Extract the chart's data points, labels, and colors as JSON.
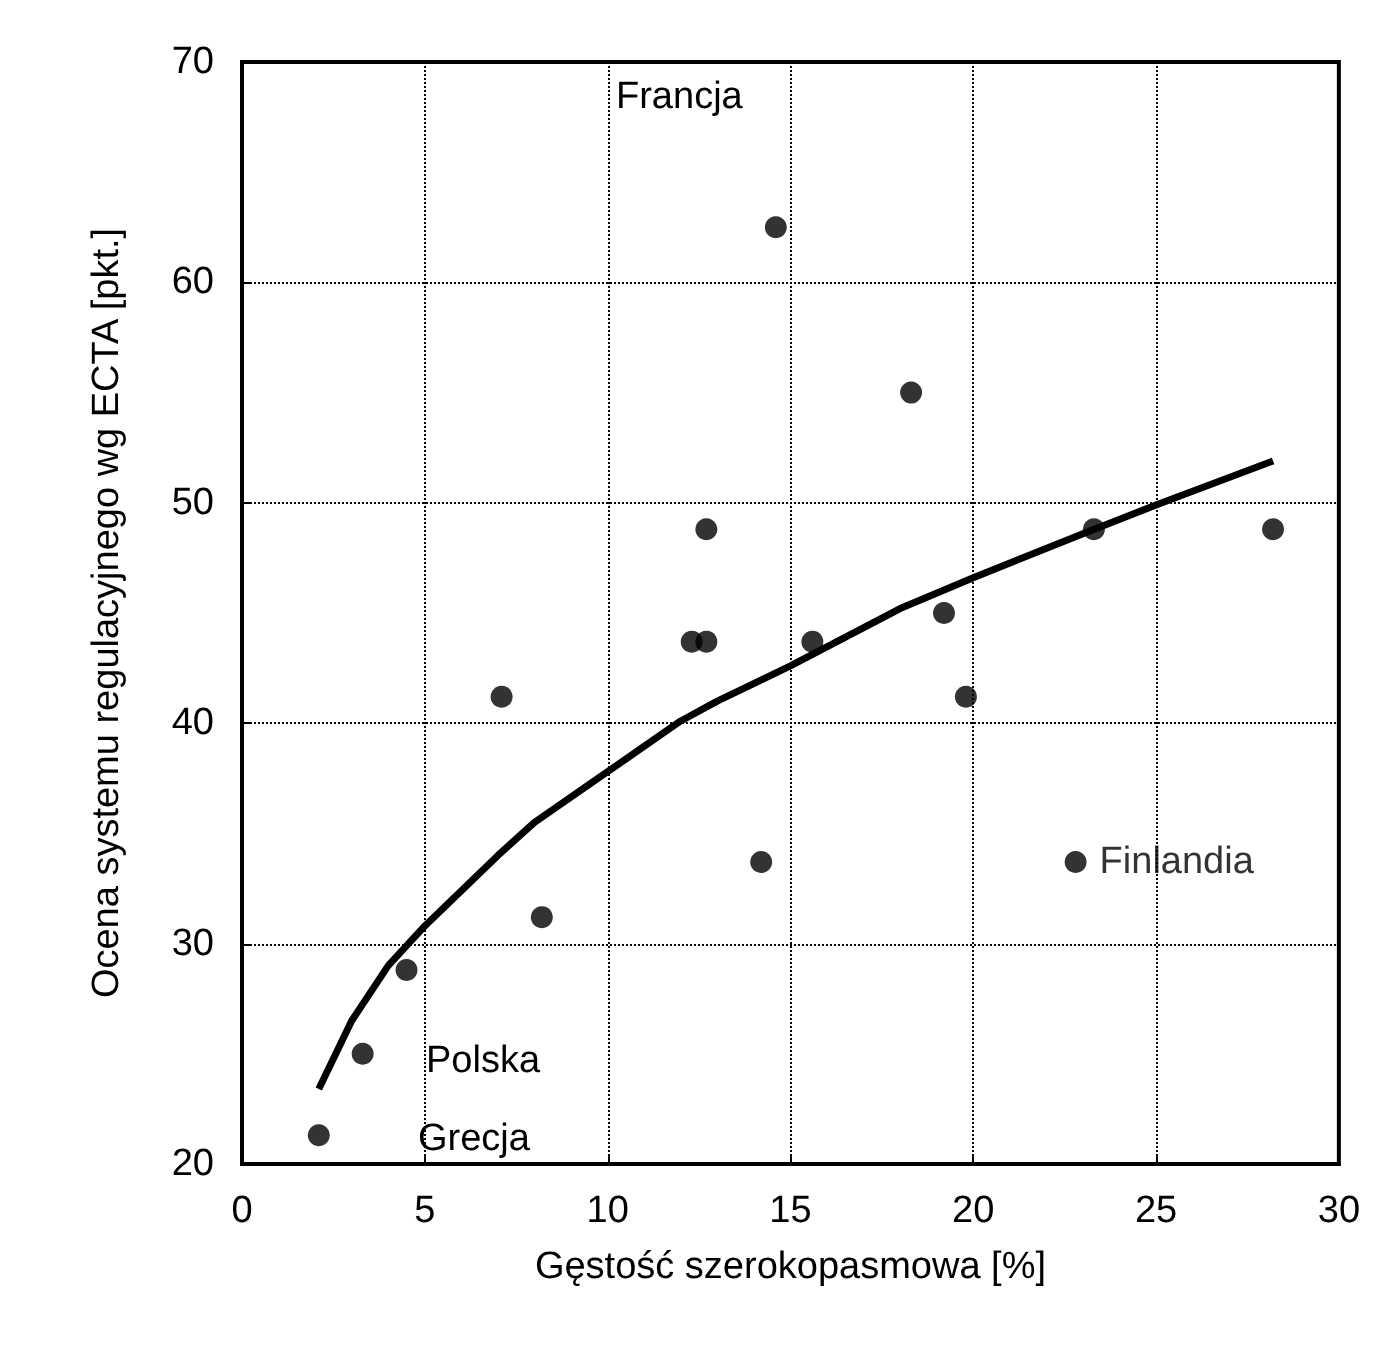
{
  "chart_data": {
    "type": "scatter",
    "xlabel": "Gęstość szerokopasmowa [%]",
    "ylabel": "Ocena systemu regulacyjnego wg ECTA [pkt.]",
    "xlim": [
      0,
      30
    ],
    "xticks": [
      0,
      5,
      10,
      15,
      20,
      25,
      30
    ],
    "ylim": [
      20,
      70
    ],
    "yticks": [
      20,
      30,
      40,
      50,
      60,
      70
    ],
    "grid": true,
    "marker": "circle",
    "series": [
      {
        "color": "#000000",
        "x": [
          2.1,
          3.3,
          4.5,
          7.1,
          8.2,
          12.3,
          12.7,
          12.7,
          14.2,
          14.6,
          15.6,
          18.3,
          19.2,
          19.8,
          22.8,
          23.3,
          28.2
        ],
        "values": [
          21.3,
          25.0,
          28.8,
          41.2,
          31.2,
          43.7,
          43.7,
          48.8,
          33.7,
          62.5,
          43.7,
          55.0,
          45.0,
          41.2,
          33.7,
          48.8,
          48.8
        ]
      },
      {
        "type": "line",
        "color": "#000000",
        "marker": "none",
        "x": [
          2.1,
          3,
          4,
          5,
          7,
          8,
          10,
          12,
          13,
          15,
          18,
          20,
          23,
          25,
          28.2
        ],
        "values": [
          23.4,
          26.5,
          29,
          30.8,
          34,
          35.5,
          37.8,
          40.1,
          41,
          42.6,
          45.2,
          46.6,
          48.6,
          49.9,
          51.9
        ]
      }
    ],
    "annotations": [
      "Francja",
      "Polska",
      "Grecja",
      {
        "text": "Finlandia",
        "x": 22.8,
        "y": 33.7
      }
    ]
  }
}
